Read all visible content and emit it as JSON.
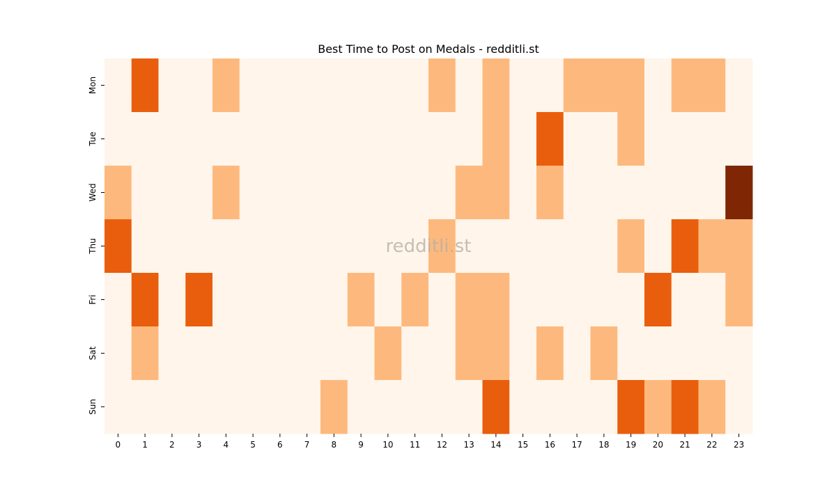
{
  "chart_data": {
    "type": "heatmap",
    "title": "Best Time to Post on Medals - redditli.st",
    "watermark": "redditli.st",
    "xlabel": "",
    "ylabel": "",
    "x_categories": [
      "0",
      "1",
      "2",
      "3",
      "4",
      "5",
      "6",
      "7",
      "8",
      "9",
      "10",
      "11",
      "12",
      "13",
      "14",
      "15",
      "16",
      "17",
      "18",
      "19",
      "20",
      "21",
      "22",
      "23"
    ],
    "y_categories": [
      "Mon",
      "Tue",
      "Wed",
      "Thu",
      "Fri",
      "Sat",
      "Sun"
    ],
    "values": [
      [
        0,
        2,
        0,
        0,
        1,
        0,
        0,
        0,
        0,
        0,
        0,
        0,
        1,
        0,
        1,
        0,
        0,
        1,
        1,
        1,
        0,
        1,
        1,
        0
      ],
      [
        0,
        0,
        0,
        0,
        0,
        0,
        0,
        0,
        0,
        0,
        0,
        0,
        0,
        0,
        1,
        0,
        2,
        0,
        0,
        1,
        0,
        0,
        0,
        0
      ],
      [
        1,
        0,
        0,
        0,
        1,
        0,
        0,
        0,
        0,
        0,
        0,
        0,
        0,
        1,
        1,
        0,
        1,
        0,
        0,
        0,
        0,
        0,
        0,
        3
      ],
      [
        2,
        0,
        0,
        0,
        0,
        0,
        0,
        0,
        0,
        0,
        0,
        0,
        1,
        0,
        0,
        0,
        0,
        0,
        0,
        1,
        0,
        2,
        1,
        1
      ],
      [
        0,
        2,
        0,
        2,
        0,
        0,
        0,
        0,
        0,
        1,
        0,
        1,
        0,
        1,
        1,
        0,
        0,
        0,
        0,
        0,
        2,
        0,
        0,
        1
      ],
      [
        0,
        1,
        0,
        0,
        0,
        0,
        0,
        0,
        0,
        0,
        1,
        0,
        0,
        1,
        1,
        0,
        1,
        0,
        1,
        0,
        0,
        0,
        0,
        0
      ],
      [
        0,
        0,
        0,
        0,
        0,
        0,
        0,
        0,
        1,
        0,
        0,
        0,
        0,
        0,
        2,
        0,
        0,
        0,
        0,
        2,
        1,
        2,
        1,
        0
      ]
    ],
    "color_scale": [
      "#fff5eb",
      "#fdb97d",
      "#e95e0d",
      "#7f2704"
    ],
    "colormap": "Oranges",
    "colorbar": false,
    "grid": false
  }
}
